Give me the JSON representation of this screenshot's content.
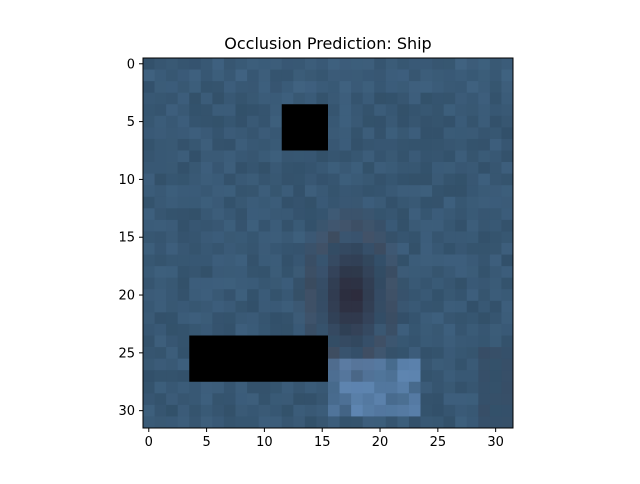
{
  "chart_data": {
    "type": "heatmap",
    "title": "Occlusion Prediction: Ship",
    "xlabel": "",
    "ylabel": "",
    "x_ticks": [
      0,
      5,
      10,
      15,
      20,
      25,
      30
    ],
    "y_ticks": [
      0,
      5,
      10,
      15,
      20,
      25,
      30
    ],
    "xlim": [
      -0.5,
      31.5
    ],
    "ylim": [
      31.5,
      -0.5
    ],
    "y_inverted": true,
    "grid": false,
    "image_size": [
      32,
      32
    ],
    "colors": {
      "background_base": "#2f4c64",
      "background_light": "#45698a",
      "object_dark": "#2a2432",
      "object_mid": "#4a3e48",
      "highlight": "#6f99cc",
      "occlusion": "#000000"
    },
    "occlusion_patches": [
      {
        "row_start": 4,
        "row_end": 7,
        "col_start": 12,
        "col_end": 15
      },
      {
        "row_start": 24,
        "row_end": 27,
        "col_start": 4,
        "col_end": 15
      }
    ]
  }
}
